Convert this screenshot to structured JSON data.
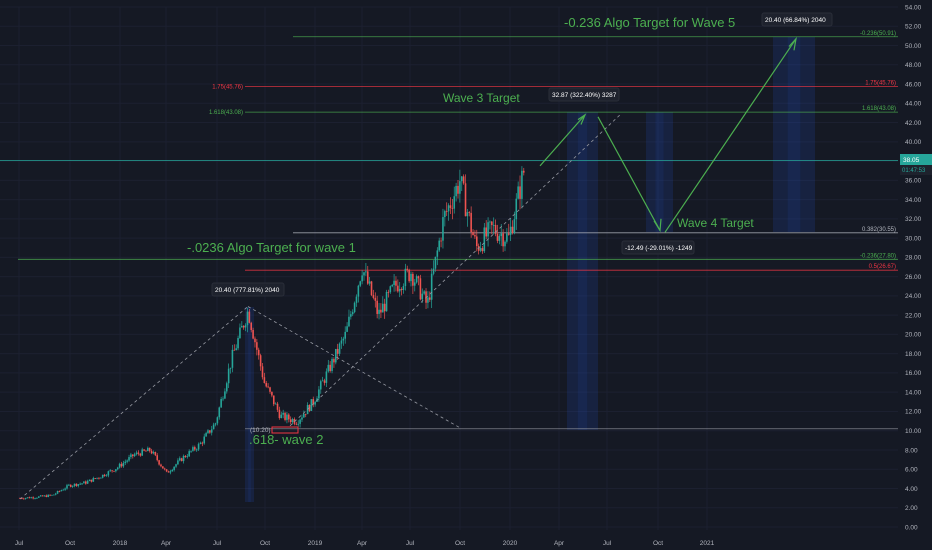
{
  "chart_data": {
    "type": "candlestick",
    "ylim": [
      0,
      54
    ],
    "y_ticks": [
      "0.00",
      "2.00",
      "4.00",
      "6.00",
      "8.00",
      "10.00",
      "12.00",
      "14.00",
      "16.00",
      "18.00",
      "20.00",
      "22.00",
      "24.00",
      "26.00",
      "28.00",
      "30.00",
      "32.00",
      "34.00",
      "36.00",
      "38.00",
      "40.00",
      "42.00",
      "44.00",
      "46.00",
      "48.00",
      "50.00",
      "52.00",
      "54.00"
    ],
    "x_ticks": [
      "Jul",
      "Oct",
      "2018",
      "Apr",
      "Jul",
      "Oct",
      "2019",
      "Apr",
      "Jul",
      "Oct",
      "2020",
      "Apr",
      "Jul",
      "Oct",
      "2021"
    ],
    "price_path": [
      {
        "t": "2017-07",
        "v": 3.0
      },
      {
        "t": "2017-08",
        "v": 3.1
      },
      {
        "t": "2017-09",
        "v": 3.3
      },
      {
        "t": "2017-10",
        "v": 4.3
      },
      {
        "t": "2017-11",
        "v": 4.6
      },
      {
        "t": "2017-12",
        "v": 5.3
      },
      {
        "t": "2018-01",
        "v": 6.2
      },
      {
        "t": "2018-02",
        "v": 7.5
      },
      {
        "t": "2018-03",
        "v": 8.0
      },
      {
        "t": "2018-04",
        "v": 5.6
      },
      {
        "t": "2018-05",
        "v": 7.2
      },
      {
        "t": "2018-06",
        "v": 8.5
      },
      {
        "t": "2018-07",
        "v": 10.8
      },
      {
        "t": "2018-08",
        "v": 17.5
      },
      {
        "t": "2018-09",
        "v": 22.5
      },
      {
        "t": "2018-10",
        "v": 15.0
      },
      {
        "t": "2018-11",
        "v": 11.5
      },
      {
        "t": "2018-12",
        "v": 11.0
      },
      {
        "t": "2019-01",
        "v": 13.0
      },
      {
        "t": "2019-02",
        "v": 16.5
      },
      {
        "t": "2019-03",
        "v": 20.0
      },
      {
        "t": "2019-04",
        "v": 27.0
      },
      {
        "t": "2019-05",
        "v": 22.0
      },
      {
        "t": "2019-06",
        "v": 25.0
      },
      {
        "t": "2019-07",
        "v": 26.5
      },
      {
        "t": "2019-08",
        "v": 23.0
      },
      {
        "t": "2019-09",
        "v": 32.0
      },
      {
        "t": "2019-10",
        "v": 36.0
      },
      {
        "t": "2019-11",
        "v": 29.0
      },
      {
        "t": "2019-12",
        "v": 31.0
      },
      {
        "t": "2020-01",
        "v": 30.0
      },
      {
        "t": "2020-02",
        "v": 37.5
      }
    ],
    "annotations": {
      "wave5": "-0.236 Algo Target for Wave 5",
      "wave3": "Wave 3 Target",
      "wave4": "Wave 4 Target",
      "wave1": "-.0236 Algo Target for wave 1",
      "wave2": ".618- wave 2"
    },
    "levels": [
      {
        "label": "-0.236(50.91)",
        "value": 50.91,
        "color": "#4caf50"
      },
      {
        "label": "1.75(45.76)",
        "value": 45.76,
        "color": "#f23645"
      },
      {
        "label": "1.618(43.08)",
        "value": 43.08,
        "color": "#4caf50"
      },
      {
        "label": "0.382(30.55)",
        "value": 30.55,
        "color": "#b2b5be"
      },
      {
        "label": "-0.236(27.80)",
        "value": 27.8,
        "color": "#4caf50"
      },
      {
        "label": "0.5(26.67)",
        "value": 26.67,
        "color": "#f23645"
      }
    ],
    "low_label": "(10.20)",
    "measure_boxes": {
      "m1": "20.40 (777.81%) 2040",
      "m2": "32.87 (322.40%) 3287",
      "m3": "-12.49 (-29.01%) -1249",
      "m4": "20.40 (66.84%) 2040"
    },
    "last_price": "38.05",
    "countdown": "01:47:53"
  }
}
